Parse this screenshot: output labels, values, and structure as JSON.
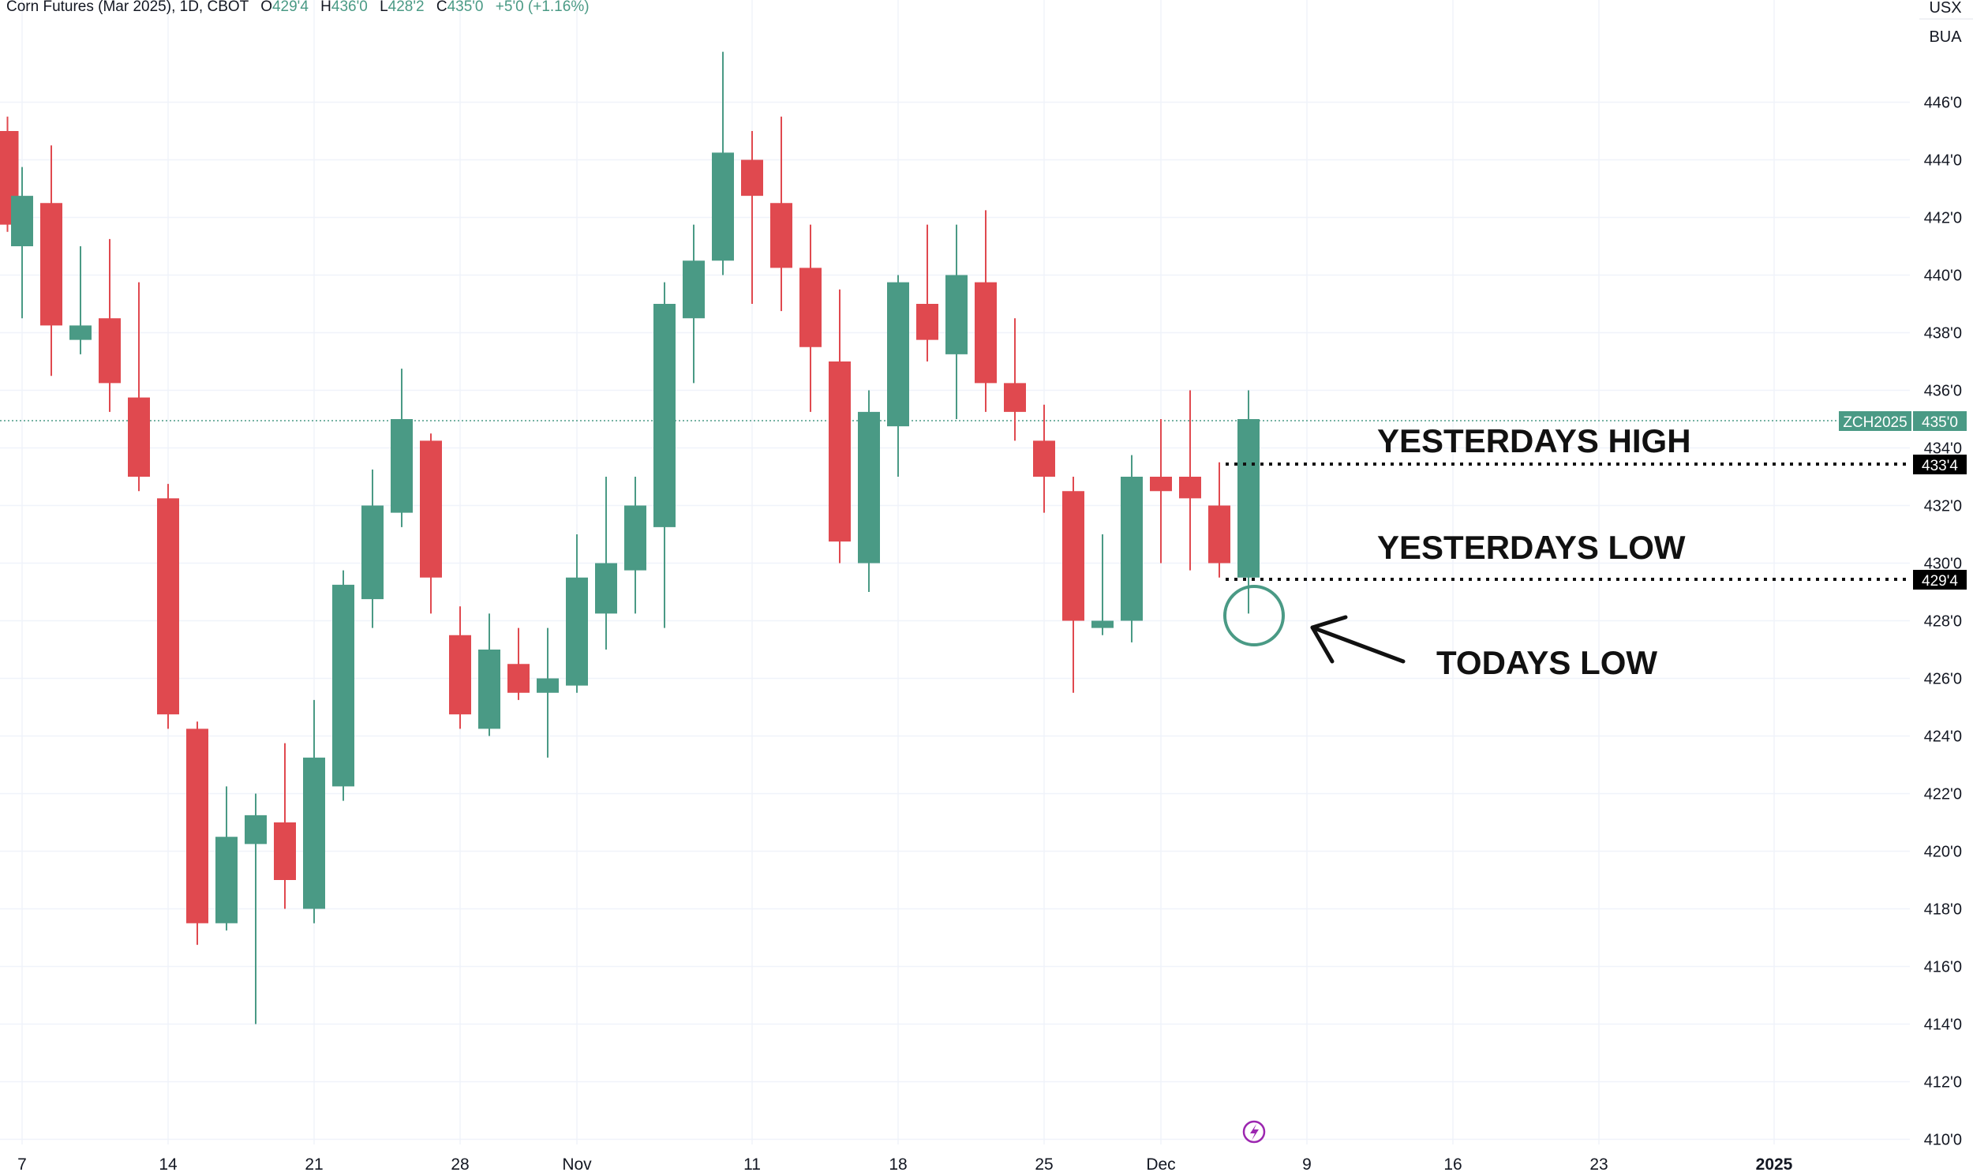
{
  "header": {
    "symbol_desc": "Corn Futures (Mar 2025), 1D, CBOT",
    "open_label": "O",
    "open_value": "429'4",
    "high_label": "H",
    "high_value": "436'0",
    "low_label": "L",
    "low_value": "428'2",
    "close_label": "C",
    "close_value": "435'0",
    "change": "+5'0 (+1.16%)"
  },
  "axis_header": {
    "currency": "USX",
    "unit": "BUA"
  },
  "colors": {
    "up": "#4a9a85",
    "down": "#e0494f",
    "grid": "#f0f3fa",
    "axis_text": "#131722",
    "ohlc_value": "#4a9a85"
  },
  "price_tag": {
    "symbol": "ZCH2025",
    "value": "435'0",
    "price": 435.0
  },
  "level_tags": [
    {
      "name": "yesterdays-high",
      "price": 433.5,
      "value": "433'4"
    },
    {
      "name": "yesterdays-low",
      "price": 429.5,
      "value": "429'4"
    }
  ],
  "annotations": {
    "yesterdays_high": "YESTERDAYS HIGH",
    "yesterdays_low": "YESTERDAYS LOW",
    "todays_low": "TODAYS LOW"
  },
  "chart_data": {
    "type": "candlestick",
    "title": "Corn Futures (Mar 2025), 1D, CBOT",
    "ylim": [
      409.5,
      448.0
    ],
    "y_ticks": [
      {
        "v": 446,
        "label": "446'0"
      },
      {
        "v": 444,
        "label": "444'0"
      },
      {
        "v": 442,
        "label": "442'0"
      },
      {
        "v": 440,
        "label": "440'0"
      },
      {
        "v": 438,
        "label": "438'0"
      },
      {
        "v": 436,
        "label": "436'0"
      },
      {
        "v": 434,
        "label": "434'0"
      },
      {
        "v": 432,
        "label": "432'0"
      },
      {
        "v": 430,
        "label": "430'0"
      },
      {
        "v": 428,
        "label": "428'0"
      },
      {
        "v": 426,
        "label": "426'0"
      },
      {
        "v": 424,
        "label": "424'0"
      },
      {
        "v": 422,
        "label": "422'0"
      },
      {
        "v": 420,
        "label": "420'0"
      },
      {
        "v": 418,
        "label": "418'0"
      },
      {
        "v": 416,
        "label": "416'0"
      },
      {
        "v": 414,
        "label": "414'0"
      },
      {
        "v": 412,
        "label": "412'0"
      },
      {
        "v": 410,
        "label": "410'0"
      }
    ],
    "x_ticks": [
      {
        "i": 0,
        "label": "7"
      },
      {
        "i": 5,
        "label": "14"
      },
      {
        "i": 10,
        "label": "21"
      },
      {
        "i": 15,
        "label": "28"
      },
      {
        "i": 19,
        "label": "Nov"
      },
      {
        "i": 25,
        "label": "11"
      },
      {
        "i": 30,
        "label": "18"
      },
      {
        "i": 35,
        "label": "25"
      },
      {
        "i": 39,
        "label": "Dec"
      },
      {
        "i": 44,
        "label": "9"
      },
      {
        "i": 49,
        "label": "16"
      },
      {
        "i": 54,
        "label": "23"
      },
      {
        "i": 60,
        "label": "2025"
      }
    ],
    "candles": [
      {
        "i": -0.5,
        "o": 445.0,
        "h": 445.5,
        "l": 441.5,
        "c": 441.75
      },
      {
        "i": 0,
        "o": 441.0,
        "h": 443.75,
        "l": 438.5,
        "c": 442.75
      },
      {
        "i": 1,
        "o": 442.5,
        "h": 444.5,
        "l": 436.5,
        "c": 438.25
      },
      {
        "i": 2,
        "o": 437.75,
        "h": 441.0,
        "l": 437.25,
        "c": 438.25
      },
      {
        "i": 3,
        "o": 438.5,
        "h": 441.25,
        "l": 435.25,
        "c": 436.25
      },
      {
        "i": 4,
        "o": 435.75,
        "h": 439.75,
        "l": 432.5,
        "c": 433.0
      },
      {
        "i": 5,
        "o": 432.25,
        "h": 432.75,
        "l": 424.25,
        "c": 424.75
      },
      {
        "i": 6,
        "o": 424.25,
        "h": 424.5,
        "l": 416.75,
        "c": 417.5
      },
      {
        "i": 7,
        "o": 417.5,
        "h": 422.25,
        "l": 417.25,
        "c": 420.5
      },
      {
        "i": 8,
        "o": 420.25,
        "h": 422.0,
        "l": 414.0,
        "c": 421.25
      },
      {
        "i": 9,
        "o": 421.0,
        "h": 423.75,
        "l": 418.0,
        "c": 419.0
      },
      {
        "i": 10,
        "o": 418.0,
        "h": 425.25,
        "l": 417.5,
        "c": 423.25
      },
      {
        "i": 11,
        "o": 422.25,
        "h": 429.75,
        "l": 421.75,
        "c": 429.25
      },
      {
        "i": 12,
        "o": 428.75,
        "h": 433.25,
        "l": 427.75,
        "c": 432.0
      },
      {
        "i": 13,
        "o": 431.75,
        "h": 436.75,
        "l": 431.25,
        "c": 435.0
      },
      {
        "i": 14,
        "o": 434.25,
        "h": 434.5,
        "l": 428.25,
        "c": 429.5
      },
      {
        "i": 15,
        "o": 427.5,
        "h": 428.5,
        "l": 424.25,
        "c": 424.75
      },
      {
        "i": 16,
        "o": 424.25,
        "h": 428.25,
        "l": 424.0,
        "c": 427.0
      },
      {
        "i": 17,
        "o": 426.5,
        "h": 427.75,
        "l": 425.25,
        "c": 425.5
      },
      {
        "i": 18,
        "o": 425.5,
        "h": 427.75,
        "l": 423.25,
        "c": 426.0
      },
      {
        "i": 19,
        "o": 425.75,
        "h": 431.0,
        "l": 425.5,
        "c": 429.5
      },
      {
        "i": 20,
        "o": 428.25,
        "h": 433.0,
        "l": 427.0,
        "c": 430.0
      },
      {
        "i": 21,
        "o": 429.75,
        "h": 433.0,
        "l": 428.25,
        "c": 432.0
      },
      {
        "i": 22,
        "o": 431.25,
        "h": 439.75,
        "l": 427.75,
        "c": 439.0
      },
      {
        "i": 23,
        "o": 438.5,
        "h": 441.75,
        "l": 436.25,
        "c": 440.5
      },
      {
        "i": 24,
        "o": 440.5,
        "h": 447.75,
        "l": 440.0,
        "c": 444.25
      },
      {
        "i": 25,
        "o": 444.0,
        "h": 445.0,
        "l": 439.0,
        "c": 442.75
      },
      {
        "i": 26,
        "o": 442.5,
        "h": 445.5,
        "l": 438.75,
        "c": 440.25
      },
      {
        "i": 27,
        "o": 440.25,
        "h": 441.75,
        "l": 435.25,
        "c": 437.5
      },
      {
        "i": 28,
        "o": 437.0,
        "h": 439.5,
        "l": 430.0,
        "c": 430.75
      },
      {
        "i": 29,
        "o": 430.0,
        "h": 436.0,
        "l": 429.0,
        "c": 435.25
      },
      {
        "i": 30,
        "o": 434.75,
        "h": 440.0,
        "l": 433.0,
        "c": 439.75
      },
      {
        "i": 31,
        "o": 439.0,
        "h": 441.75,
        "l": 437.0,
        "c": 437.75
      },
      {
        "i": 32,
        "o": 437.25,
        "h": 441.75,
        "l": 435.0,
        "c": 440.0
      },
      {
        "i": 33,
        "o": 439.75,
        "h": 442.25,
        "l": 435.25,
        "c": 436.25
      },
      {
        "i": 34,
        "o": 436.25,
        "h": 438.5,
        "l": 434.25,
        "c": 435.25
      },
      {
        "i": 35,
        "o": 434.25,
        "h": 435.5,
        "l": 431.75,
        "c": 433.0
      },
      {
        "i": 36,
        "o": 432.5,
        "h": 433.0,
        "l": 425.5,
        "c": 428.0
      },
      {
        "i": 37,
        "o": 427.75,
        "h": 431.0,
        "l": 427.5,
        "c": 428.0
      },
      {
        "i": 38,
        "o": 428.0,
        "h": 433.75,
        "l": 427.25,
        "c": 433.0
      },
      {
        "i": 39,
        "o": 433.0,
        "h": 435.0,
        "l": 430.0,
        "c": 432.5
      },
      {
        "i": 40,
        "o": 433.0,
        "h": 436.0,
        "l": 429.75,
        "c": 432.25
      },
      {
        "i": 41,
        "o": 432.0,
        "h": 433.5,
        "l": 429.5,
        "c": 430.0
      },
      {
        "i": 42,
        "o": 429.5,
        "h": 436.0,
        "l": 428.25,
        "c": 435.0
      }
    ]
  }
}
